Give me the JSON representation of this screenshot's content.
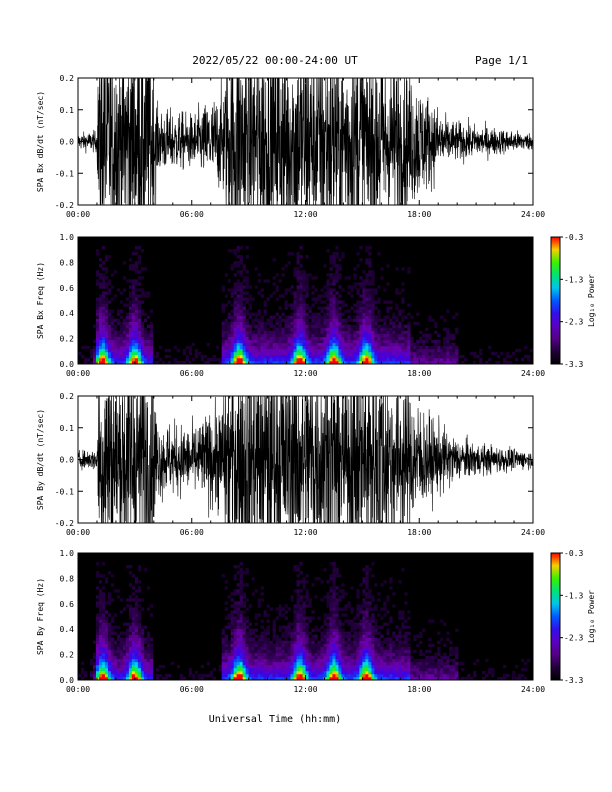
{
  "header": {
    "title": "2022/05/22  00:00-24:00 UT",
    "page": "Page 1/1"
  },
  "footer": {
    "xlabel": "Universal Time (hh:mm)"
  },
  "chart_data": [
    {
      "type": "line",
      "ylabel": "SPA Bx dB/dt (nT/sec)",
      "xlim": [
        "00:00",
        "24:00"
      ],
      "ylim": [
        -0.2,
        0.2
      ],
      "x_ticks": [
        "00:00",
        "06:00",
        "12:00",
        "18:00",
        "24:00"
      ],
      "y_ticks": [
        "0.2",
        "0.1",
        "0.0",
        "-0.1",
        "-0.2"
      ],
      "envelope_x_hours": [
        0,
        1,
        1.1,
        3.9,
        4.2,
        6,
        7.5,
        8.2,
        10,
        11.5,
        13.5,
        15.5,
        17.5,
        19.5,
        21,
        24
      ],
      "envelope_amplitude": [
        0.015,
        0.02,
        0.2,
        0.2,
        0.06,
        0.05,
        0.09,
        0.2,
        0.2,
        0.2,
        0.2,
        0.2,
        0.13,
        0.04,
        0.03,
        0.015
      ]
    },
    {
      "type": "heatmap",
      "ylabel": "SPA Bx Freq (Hz)",
      "xlim": [
        "00:00",
        "24:00"
      ],
      "ylim": [
        0.0,
        1.0
      ],
      "x_ticks": [
        "00:00",
        "06:00",
        "12:00",
        "18:00",
        "24:00"
      ],
      "y_ticks": [
        "1.0",
        "0.8",
        "0.6",
        "0.4",
        "0.2",
        "0.0"
      ],
      "colorbar": {
        "label": "Log₁₀ Power",
        "ticks": [
          "-0.3",
          "-1.3",
          "-2.3",
          "-3.3"
        ],
        "range": [
          -3.3,
          -0.3
        ]
      },
      "hot_spots_hours": [
        1.3,
        3.0,
        8.5,
        11.7,
        13.5,
        15.2
      ]
    },
    {
      "type": "line",
      "ylabel": "SPA By dB/dt (nT/sec)",
      "xlim": [
        "00:00",
        "24:00"
      ],
      "ylim": [
        -0.2,
        0.2
      ],
      "x_ticks": [
        "00:00",
        "06:00",
        "12:00",
        "18:00",
        "24:00"
      ],
      "y_ticks": [
        "0.2",
        "0.1",
        "0.0",
        "-0.1",
        "-0.2"
      ],
      "envelope_x_hours": [
        0,
        1,
        1.1,
        3.9,
        4.2,
        6,
        7.5,
        8.0,
        10,
        12,
        14,
        16,
        18.5,
        20,
        21,
        24
      ],
      "envelope_amplitude": [
        0.015,
        0.02,
        0.2,
        0.2,
        0.07,
        0.06,
        0.1,
        0.2,
        0.2,
        0.2,
        0.2,
        0.2,
        0.08,
        0.04,
        0.03,
        0.015
      ]
    },
    {
      "type": "heatmap",
      "ylabel": "SPA By Freq (Hz)",
      "xlim": [
        "00:00",
        "24:00"
      ],
      "ylim": [
        0.0,
        1.0
      ],
      "x_ticks": [
        "00:00",
        "06:00",
        "12:00",
        "18:00",
        "24:00"
      ],
      "y_ticks": [
        "1.0",
        "0.8",
        "0.6",
        "0.4",
        "0.2",
        "0.0"
      ],
      "colorbar": {
        "label": "Log₁₀ Power",
        "ticks": [
          "-0.3",
          "-1.3",
          "-2.3",
          "-3.3"
        ],
        "range": [
          -3.3,
          -0.3
        ]
      },
      "hot_spots_hours": [
        1.3,
        3.0,
        8.5,
        11.7,
        13.5,
        15.2
      ]
    }
  ]
}
